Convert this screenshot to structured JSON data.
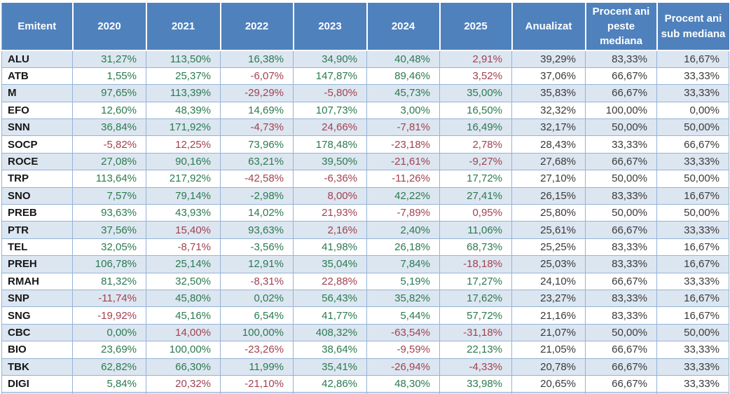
{
  "colors": {
    "header_bg": "#4f81bd",
    "header_text": "#ffffff",
    "band_bg": "#dce6f1",
    "grid_line": "#95b3d7",
    "positive_text": "#2b7a4f",
    "negative_text": "#a2414f",
    "neutral_text": "#3a3a3a",
    "label_text": "#161616"
  },
  "table": {
    "columns": [
      {
        "key": "emitent",
        "label": "Emitent",
        "wrap": false
      },
      {
        "key": "y2020",
        "label": "2020",
        "wrap": false
      },
      {
        "key": "y2021",
        "label": "2021",
        "wrap": false
      },
      {
        "key": "y2022",
        "label": "2022",
        "wrap": false
      },
      {
        "key": "y2023",
        "label": "2023",
        "wrap": false
      },
      {
        "key": "y2024",
        "label": "2024",
        "wrap": false
      },
      {
        "key": "y2025",
        "label": "2025",
        "wrap": false
      },
      {
        "key": "anualizat",
        "label": "Anualizat",
        "wrap": false
      },
      {
        "key": "procent-ani-peste-mediana",
        "label": "Procent ani peste mediana",
        "wrap": true
      },
      {
        "key": "procent-ani-sub-mediana",
        "label": "Procent ani sub mediana",
        "wrap": true
      }
    ],
    "rows": [
      {
        "cells": [
          {
            "text": "ALU",
            "tone": "label"
          },
          {
            "text": "31,27%",
            "tone": "positive"
          },
          {
            "text": "113,50%",
            "tone": "positive"
          },
          {
            "text": "16,38%",
            "tone": "positive"
          },
          {
            "text": "34,90%",
            "tone": "positive"
          },
          {
            "text": "40,48%",
            "tone": "positive"
          },
          {
            "text": "2,91%",
            "tone": "negative"
          },
          {
            "text": "39,29%",
            "tone": "neutral"
          },
          {
            "text": "83,33%",
            "tone": "neutral"
          },
          {
            "text": "16,67%",
            "tone": "neutral"
          }
        ]
      },
      {
        "cells": [
          {
            "text": "ATB",
            "tone": "label"
          },
          {
            "text": "1,55%",
            "tone": "positive"
          },
          {
            "text": "25,37%",
            "tone": "positive"
          },
          {
            "text": "-6,07%",
            "tone": "negative"
          },
          {
            "text": "147,87%",
            "tone": "positive"
          },
          {
            "text": "89,46%",
            "tone": "positive"
          },
          {
            "text": "3,52%",
            "tone": "negative"
          },
          {
            "text": "37,06%",
            "tone": "neutral"
          },
          {
            "text": "66,67%",
            "tone": "neutral"
          },
          {
            "text": "33,33%",
            "tone": "neutral"
          }
        ]
      },
      {
        "cells": [
          {
            "text": "M",
            "tone": "label"
          },
          {
            "text": "97,65%",
            "tone": "positive"
          },
          {
            "text": "113,39%",
            "tone": "positive"
          },
          {
            "text": "-29,29%",
            "tone": "negative"
          },
          {
            "text": "-5,80%",
            "tone": "negative"
          },
          {
            "text": "45,73%",
            "tone": "positive"
          },
          {
            "text": "35,00%",
            "tone": "positive"
          },
          {
            "text": "35,83%",
            "tone": "neutral"
          },
          {
            "text": "66,67%",
            "tone": "neutral"
          },
          {
            "text": "33,33%",
            "tone": "neutral"
          }
        ]
      },
      {
        "cells": [
          {
            "text": "EFO",
            "tone": "label"
          },
          {
            "text": "12,60%",
            "tone": "positive"
          },
          {
            "text": "48,39%",
            "tone": "positive"
          },
          {
            "text": "14,69%",
            "tone": "positive"
          },
          {
            "text": "107,73%",
            "tone": "positive"
          },
          {
            "text": "3,00%",
            "tone": "positive"
          },
          {
            "text": "16,50%",
            "tone": "positive"
          },
          {
            "text": "32,32%",
            "tone": "neutral"
          },
          {
            "text": "100,00%",
            "tone": "neutral"
          },
          {
            "text": "0,00%",
            "tone": "neutral"
          }
        ]
      },
      {
        "cells": [
          {
            "text": "SNN",
            "tone": "label"
          },
          {
            "text": "36,84%",
            "tone": "positive"
          },
          {
            "text": "171,92%",
            "tone": "positive"
          },
          {
            "text": "-4,73%",
            "tone": "negative"
          },
          {
            "text": "24,66%",
            "tone": "negative"
          },
          {
            "text": "-7,81%",
            "tone": "negative"
          },
          {
            "text": "16,49%",
            "tone": "positive"
          },
          {
            "text": "32,17%",
            "tone": "neutral"
          },
          {
            "text": "50,00%",
            "tone": "neutral"
          },
          {
            "text": "50,00%",
            "tone": "neutral"
          }
        ]
      },
      {
        "cells": [
          {
            "text": "SOCP",
            "tone": "label"
          },
          {
            "text": "-5,82%",
            "tone": "negative"
          },
          {
            "text": "12,25%",
            "tone": "negative"
          },
          {
            "text": "73,96%",
            "tone": "positive"
          },
          {
            "text": "178,48%",
            "tone": "positive"
          },
          {
            "text": "-23,18%",
            "tone": "negative"
          },
          {
            "text": "2,78%",
            "tone": "negative"
          },
          {
            "text": "28,43%",
            "tone": "neutral"
          },
          {
            "text": "33,33%",
            "tone": "neutral"
          },
          {
            "text": "66,67%",
            "tone": "neutral"
          }
        ]
      },
      {
        "cells": [
          {
            "text": "ROCE",
            "tone": "label"
          },
          {
            "text": "27,08%",
            "tone": "positive"
          },
          {
            "text": "90,16%",
            "tone": "positive"
          },
          {
            "text": "63,21%",
            "tone": "positive"
          },
          {
            "text": "39,50%",
            "tone": "positive"
          },
          {
            "text": "-21,61%",
            "tone": "negative"
          },
          {
            "text": "-9,27%",
            "tone": "negative"
          },
          {
            "text": "27,68%",
            "tone": "neutral"
          },
          {
            "text": "66,67%",
            "tone": "neutral"
          },
          {
            "text": "33,33%",
            "tone": "neutral"
          }
        ]
      },
      {
        "cells": [
          {
            "text": "TRP",
            "tone": "label"
          },
          {
            "text": "113,64%",
            "tone": "positive"
          },
          {
            "text": "217,92%",
            "tone": "positive"
          },
          {
            "text": "-42,58%",
            "tone": "negative"
          },
          {
            "text": "-6,36%",
            "tone": "negative"
          },
          {
            "text": "-11,26%",
            "tone": "negative"
          },
          {
            "text": "17,72%",
            "tone": "positive"
          },
          {
            "text": "27,10%",
            "tone": "neutral"
          },
          {
            "text": "50,00%",
            "tone": "neutral"
          },
          {
            "text": "50,00%",
            "tone": "neutral"
          }
        ]
      },
      {
        "cells": [
          {
            "text": "SNO",
            "tone": "label"
          },
          {
            "text": "7,57%",
            "tone": "positive"
          },
          {
            "text": "79,14%",
            "tone": "positive"
          },
          {
            "text": "-2,98%",
            "tone": "positive"
          },
          {
            "text": "8,00%",
            "tone": "negative"
          },
          {
            "text": "42,22%",
            "tone": "positive"
          },
          {
            "text": "27,41%",
            "tone": "positive"
          },
          {
            "text": "26,15%",
            "tone": "neutral"
          },
          {
            "text": "83,33%",
            "tone": "neutral"
          },
          {
            "text": "16,67%",
            "tone": "neutral"
          }
        ]
      },
      {
        "cells": [
          {
            "text": "PREB",
            "tone": "label"
          },
          {
            "text": "93,63%",
            "tone": "positive"
          },
          {
            "text": "43,93%",
            "tone": "positive"
          },
          {
            "text": "14,02%",
            "tone": "positive"
          },
          {
            "text": "21,93%",
            "tone": "negative"
          },
          {
            "text": "-7,89%",
            "tone": "negative"
          },
          {
            "text": "0,95%",
            "tone": "negative"
          },
          {
            "text": "25,80%",
            "tone": "neutral"
          },
          {
            "text": "50,00%",
            "tone": "neutral"
          },
          {
            "text": "50,00%",
            "tone": "neutral"
          }
        ]
      },
      {
        "cells": [
          {
            "text": "PTR",
            "tone": "label"
          },
          {
            "text": "37,56%",
            "tone": "positive"
          },
          {
            "text": "15,40%",
            "tone": "negative"
          },
          {
            "text": "93,63%",
            "tone": "positive"
          },
          {
            "text": "2,16%",
            "tone": "negative"
          },
          {
            "text": "2,40%",
            "tone": "positive"
          },
          {
            "text": "11,06%",
            "tone": "positive"
          },
          {
            "text": "25,61%",
            "tone": "neutral"
          },
          {
            "text": "66,67%",
            "tone": "neutral"
          },
          {
            "text": "33,33%",
            "tone": "neutral"
          }
        ]
      },
      {
        "cells": [
          {
            "text": "TEL",
            "tone": "label"
          },
          {
            "text": "32,05%",
            "tone": "positive"
          },
          {
            "text": "-8,71%",
            "tone": "negative"
          },
          {
            "text": "-3,56%",
            "tone": "positive"
          },
          {
            "text": "41,98%",
            "tone": "positive"
          },
          {
            "text": "26,18%",
            "tone": "positive"
          },
          {
            "text": "68,73%",
            "tone": "positive"
          },
          {
            "text": "25,25%",
            "tone": "neutral"
          },
          {
            "text": "83,33%",
            "tone": "neutral"
          },
          {
            "text": "16,67%",
            "tone": "neutral"
          }
        ]
      },
      {
        "cells": [
          {
            "text": "PREH",
            "tone": "label"
          },
          {
            "text": "106,78%",
            "tone": "positive"
          },
          {
            "text": "25,14%",
            "tone": "positive"
          },
          {
            "text": "12,91%",
            "tone": "positive"
          },
          {
            "text": "35,04%",
            "tone": "positive"
          },
          {
            "text": "7,84%",
            "tone": "positive"
          },
          {
            "text": "-18,18%",
            "tone": "negative"
          },
          {
            "text": "25,03%",
            "tone": "neutral"
          },
          {
            "text": "83,33%",
            "tone": "neutral"
          },
          {
            "text": "16,67%",
            "tone": "neutral"
          }
        ]
      },
      {
        "cells": [
          {
            "text": "RMAH",
            "tone": "label"
          },
          {
            "text": "81,32%",
            "tone": "positive"
          },
          {
            "text": "32,50%",
            "tone": "positive"
          },
          {
            "text": "-8,31%",
            "tone": "negative"
          },
          {
            "text": "22,88%",
            "tone": "negative"
          },
          {
            "text": "5,19%",
            "tone": "positive"
          },
          {
            "text": "17,27%",
            "tone": "positive"
          },
          {
            "text": "24,10%",
            "tone": "neutral"
          },
          {
            "text": "66,67%",
            "tone": "neutral"
          },
          {
            "text": "33,33%",
            "tone": "neutral"
          }
        ]
      },
      {
        "cells": [
          {
            "text": "SNP",
            "tone": "label"
          },
          {
            "text": "-11,74%",
            "tone": "negative"
          },
          {
            "text": "45,80%",
            "tone": "positive"
          },
          {
            "text": "0,02%",
            "tone": "positive"
          },
          {
            "text": "56,43%",
            "tone": "positive"
          },
          {
            "text": "35,82%",
            "tone": "positive"
          },
          {
            "text": "17,62%",
            "tone": "positive"
          },
          {
            "text": "23,27%",
            "tone": "neutral"
          },
          {
            "text": "83,33%",
            "tone": "neutral"
          },
          {
            "text": "16,67%",
            "tone": "neutral"
          }
        ]
      },
      {
        "cells": [
          {
            "text": "SNG",
            "tone": "label"
          },
          {
            "text": "-19,92%",
            "tone": "negative"
          },
          {
            "text": "45,16%",
            "tone": "positive"
          },
          {
            "text": "6,54%",
            "tone": "positive"
          },
          {
            "text": "41,77%",
            "tone": "positive"
          },
          {
            "text": "5,44%",
            "tone": "positive"
          },
          {
            "text": "57,72%",
            "tone": "positive"
          },
          {
            "text": "21,16%",
            "tone": "neutral"
          },
          {
            "text": "83,33%",
            "tone": "neutral"
          },
          {
            "text": "16,67%",
            "tone": "neutral"
          }
        ]
      },
      {
        "cells": [
          {
            "text": "CBC",
            "tone": "label"
          },
          {
            "text": "0,00%",
            "tone": "positive"
          },
          {
            "text": "14,00%",
            "tone": "negative"
          },
          {
            "text": "100,00%",
            "tone": "positive"
          },
          {
            "text": "408,32%",
            "tone": "positive"
          },
          {
            "text": "-63,54%",
            "tone": "negative"
          },
          {
            "text": "-31,18%",
            "tone": "negative"
          },
          {
            "text": "21,07%",
            "tone": "neutral"
          },
          {
            "text": "50,00%",
            "tone": "neutral"
          },
          {
            "text": "50,00%",
            "tone": "neutral"
          }
        ]
      },
      {
        "cells": [
          {
            "text": "BIO",
            "tone": "label"
          },
          {
            "text": "23,69%",
            "tone": "positive"
          },
          {
            "text": "100,00%",
            "tone": "positive"
          },
          {
            "text": "-23,26%",
            "tone": "negative"
          },
          {
            "text": "38,64%",
            "tone": "positive"
          },
          {
            "text": "-9,59%",
            "tone": "negative"
          },
          {
            "text": "22,13%",
            "tone": "positive"
          },
          {
            "text": "21,05%",
            "tone": "neutral"
          },
          {
            "text": "66,67%",
            "tone": "neutral"
          },
          {
            "text": "33,33%",
            "tone": "neutral"
          }
        ]
      },
      {
        "cells": [
          {
            "text": "TBK",
            "tone": "label"
          },
          {
            "text": "62,82%",
            "tone": "positive"
          },
          {
            "text": "66,30%",
            "tone": "positive"
          },
          {
            "text": "11,99%",
            "tone": "positive"
          },
          {
            "text": "35,41%",
            "tone": "positive"
          },
          {
            "text": "-26,94%",
            "tone": "negative"
          },
          {
            "text": "-4,33%",
            "tone": "negative"
          },
          {
            "text": "20,78%",
            "tone": "neutral"
          },
          {
            "text": "66,67%",
            "tone": "neutral"
          },
          {
            "text": "33,33%",
            "tone": "neutral"
          }
        ]
      },
      {
        "cells": [
          {
            "text": "DIGI",
            "tone": "label"
          },
          {
            "text": "5,84%",
            "tone": "positive"
          },
          {
            "text": "20,32%",
            "tone": "negative"
          },
          {
            "text": "-21,10%",
            "tone": "negative"
          },
          {
            "text": "42,86%",
            "tone": "positive"
          },
          {
            "text": "48,30%",
            "tone": "positive"
          },
          {
            "text": "33,98%",
            "tone": "positive"
          },
          {
            "text": "20,65%",
            "tone": "neutral"
          },
          {
            "text": "66,67%",
            "tone": "neutral"
          },
          {
            "text": "33,33%",
            "tone": "neutral"
          }
        ]
      }
    ]
  }
}
